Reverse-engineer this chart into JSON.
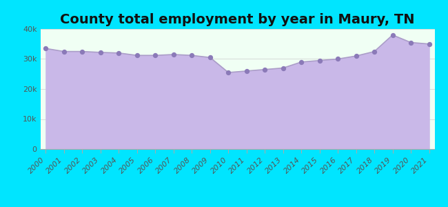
{
  "title": "County total employment by year in Maury, TN",
  "years": [
    2000,
    2001,
    2002,
    2003,
    2004,
    2005,
    2006,
    2007,
    2008,
    2009,
    2010,
    2011,
    2012,
    2013,
    2014,
    2015,
    2016,
    2017,
    2018,
    2019,
    2020,
    2021
  ],
  "values": [
    33500,
    32500,
    32500,
    32200,
    32000,
    31200,
    31200,
    31500,
    31200,
    30500,
    25500,
    26000,
    26500,
    27000,
    29000,
    29500,
    30000,
    31000,
    32500,
    38000,
    35500,
    35000
  ],
  "line_color": "#ab9dc8",
  "fill_color": "#c9b8e8",
  "marker_color": "#8b7ab8",
  "marker_size": 18,
  "background_outer": "#00e5ff",
  "background_inner": "#f0fff4",
  "ylim": [
    0,
    40000
  ],
  "yticks": [
    0,
    10000,
    20000,
    30000,
    40000
  ],
  "ytick_labels": [
    "0",
    "10k",
    "20k",
    "30k",
    "40k"
  ],
  "title_fontsize": 14,
  "title_fontweight": "bold",
  "tick_label_color": "#555555",
  "tick_label_fontsize": 8
}
